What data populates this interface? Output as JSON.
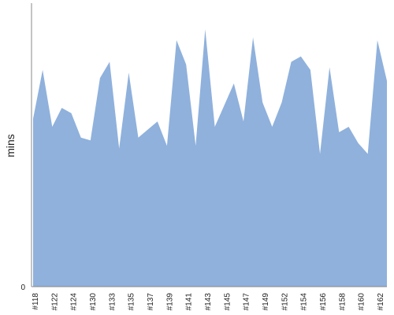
{
  "chart_data": {
    "type": "area",
    "ylabel": "mins",
    "y_tick_labels": [
      "0"
    ],
    "x_tick_labels": [
      "#118",
      "#122",
      "#124",
      "#130",
      "#133",
      "#135",
      "#137",
      "#139",
      "#141",
      "#143",
      "#145",
      "#147",
      "#149",
      "#152",
      "#154",
      "#156",
      "#158",
      "#160",
      "#162"
    ],
    "ylim": [
      0,
      100
    ],
    "grid": false,
    "colors": {
      "area": "#8fb1dc",
      "axis": "#888888",
      "text": "#222222"
    },
    "values": [
      62,
      80,
      59,
      66,
      64,
      55,
      54,
      77,
      83,
      51,
      79,
      55,
      58,
      61,
      52,
      91,
      82,
      52,
      95,
      59,
      67,
      75,
      61,
      92,
      68,
      59,
      68,
      83,
      85,
      80,
      49,
      81,
      57,
      59,
      53,
      49,
      91,
      76
    ]
  }
}
